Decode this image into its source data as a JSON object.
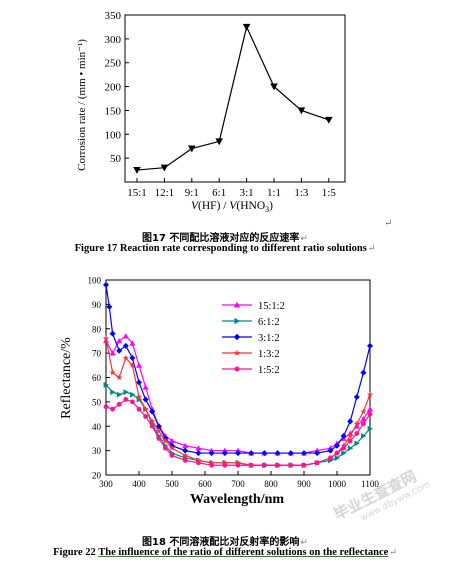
{
  "chart_data": [
    {
      "type": "line",
      "categories": [
        "15:1",
        "12:1",
        "9:1",
        "6:1",
        "3:1",
        "1:1",
        "1:3",
        "1:5"
      ],
      "series": [
        {
          "values": [
            25,
            30,
            70,
            85,
            325,
            200,
            150,
            130
          ]
        }
      ],
      "ylabel": "Corrosion rate / (mm • min⁻¹)",
      "xlabel": "V(HF) / V(HNO₃)",
      "ylim": [
        0,
        350
      ],
      "yticks": [
        50,
        100,
        150,
        200,
        250,
        300,
        350
      ],
      "grid": false,
      "marker": "triangle-down"
    },
    {
      "type": "line",
      "ylabel": "Reflectance/%",
      "xlabel": "Wavelength/nm",
      "xlim": [
        300,
        1100
      ],
      "ylim": [
        20,
        100
      ],
      "xticks": [
        300,
        400,
        500,
        600,
        700,
        800,
        900,
        1000,
        1100
      ],
      "yticks": [
        20,
        30,
        40,
        50,
        60,
        70,
        80,
        90,
        100
      ],
      "grid": false,
      "legend_position": "top-center",
      "series": [
        {
          "name": "15:1:2",
          "color": "#ff00ff",
          "marker": "triangle-up",
          "x": [
            300,
            320,
            340,
            360,
            380,
            400,
            420,
            440,
            460,
            480,
            500,
            540,
            580,
            620,
            660,
            700,
            740,
            780,
            820,
            860,
            900,
            940,
            980,
            1000,
            1020,
            1040,
            1060,
            1080,
            1100
          ],
          "y": [
            75,
            70,
            75,
            77,
            74,
            65,
            56,
            47,
            40,
            36,
            34,
            32,
            31,
            30,
            30,
            30,
            29,
            29,
            29,
            29,
            29,
            30,
            31,
            33,
            35,
            37,
            40,
            43,
            47
          ]
        },
        {
          "name": "6:1:2",
          "color": "#008b8b",
          "marker": "triangle-right",
          "x": [
            300,
            320,
            340,
            360,
            380,
            400,
            420,
            440,
            460,
            480,
            500,
            540,
            580,
            620,
            660,
            700,
            740,
            780,
            820,
            860,
            900,
            940,
            980,
            1000,
            1020,
            1040,
            1060,
            1080,
            1100
          ],
          "y": [
            57,
            54,
            53,
            54,
            53,
            51,
            47,
            41,
            36,
            32,
            29,
            27,
            26,
            25,
            25,
            25,
            24,
            24,
            24,
            24,
            24,
            25,
            26,
            27,
            29,
            31,
            33,
            36,
            39
          ]
        },
        {
          "name": "3:1:2",
          "color": "#0000ff",
          "marker": "diamond",
          "x": [
            300,
            310,
            320,
            340,
            360,
            380,
            400,
            420,
            440,
            460,
            480,
            500,
            540,
            580,
            620,
            660,
            700,
            740,
            780,
            820,
            860,
            900,
            940,
            980,
            1000,
            1020,
            1040,
            1060,
            1080,
            1100
          ],
          "y": [
            98,
            89,
            78,
            71,
            73,
            68,
            58,
            51,
            46,
            40,
            35,
            32,
            30,
            29,
            29,
            29,
            29,
            29,
            29,
            29,
            29,
            29,
            29,
            30,
            32,
            36,
            42,
            52,
            62,
            73
          ]
        },
        {
          "name": "1:3:2",
          "color": "#ff3333",
          "marker": "star",
          "x": [
            300,
            320,
            340,
            360,
            380,
            400,
            420,
            440,
            460,
            480,
            500,
            540,
            580,
            620,
            660,
            700,
            740,
            780,
            820,
            860,
            900,
            940,
            980,
            1000,
            1020,
            1040,
            1060,
            1080,
            1100
          ],
          "y": [
            76,
            62,
            60,
            68,
            65,
            52,
            47,
            42,
            38,
            34,
            31,
            28,
            26,
            25,
            25,
            25,
            24,
            24,
            24,
            24,
            24,
            25,
            27,
            29,
            32,
            36,
            41,
            46,
            53
          ]
        },
        {
          "name": "1:5:2",
          "color": "#ff1493",
          "marker": "circle",
          "x": [
            300,
            320,
            340,
            360,
            380,
            400,
            420,
            440,
            460,
            480,
            500,
            540,
            580,
            620,
            660,
            700,
            740,
            780,
            820,
            860,
            900,
            940,
            980,
            1000,
            1020,
            1040,
            1060,
            1080,
            1100
          ],
          "y": [
            48,
            47,
            49,
            51,
            50,
            47,
            44,
            40,
            35,
            31,
            28,
            26,
            25,
            24,
            24,
            24,
            24,
            24,
            24,
            24,
            24,
            25,
            27,
            29,
            31,
            34,
            37,
            41,
            45
          ]
        }
      ]
    }
  ],
  "captions": {
    "fig17_cn": "图17  不同配比溶液对应的反应速率",
    "fig17_en": "Figure 17 Reaction rate corresponding  to different ratio solutions",
    "fig18_cn": "图18  不同溶液配比对反射率的影响",
    "fig22_en_a": "Figure 22 ",
    "fig22_en_b": "The influence of the ratio of different solutions on the reflectance",
    "return_mark": "↵"
  },
  "watermark": {
    "text": "毕业生查查网",
    "sub": "www.dbyww.com"
  }
}
